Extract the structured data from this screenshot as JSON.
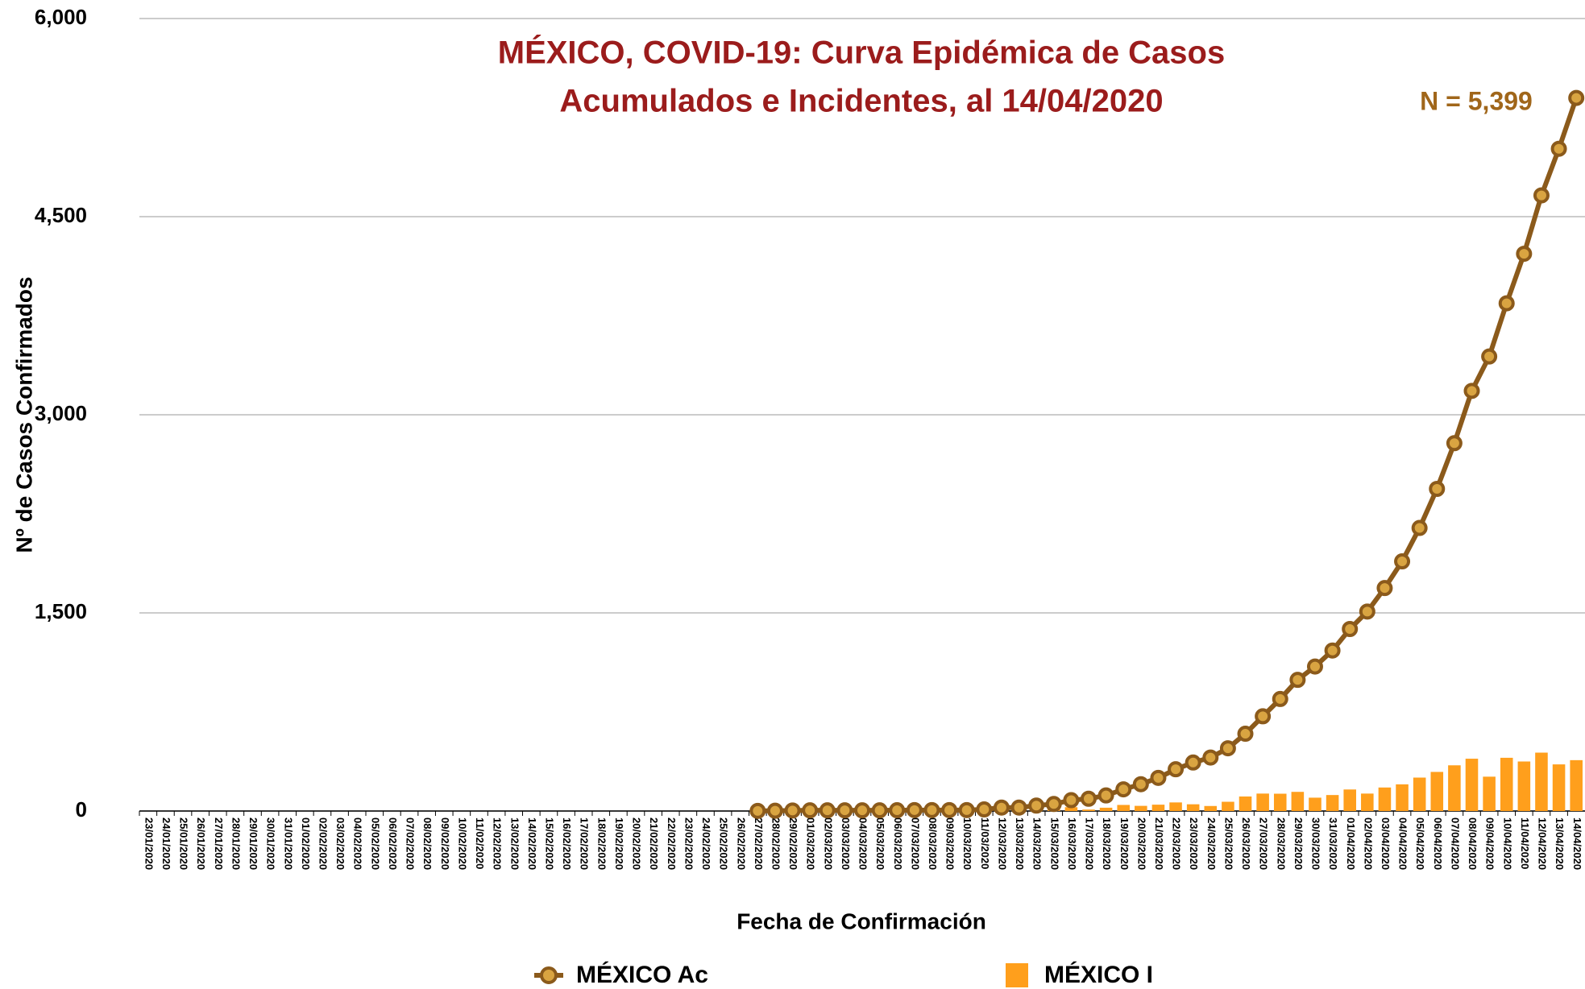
{
  "chart_data": {
    "type": "line-bar",
    "title": [
      "MÉXICO, COVID-19: Curva Epidémica de Casos",
      "Acumulados e Incidentes, al 14/04/2020"
    ],
    "annotation": "N = 5,399",
    "y_label": "Nº de Casos Confirmados",
    "x_label": "Fecha de Confirmación",
    "categories": [
      "23/01/2020",
      "24/01/2020",
      "25/01/2020",
      "26/01/2020",
      "27/01/2020",
      "28/01/2020",
      "29/01/2020",
      "30/01/2020",
      "31/01/2020",
      "01/02/2020",
      "02/02/2020",
      "03/02/2020",
      "04/02/2020",
      "05/02/2020",
      "06/02/2020",
      "07/02/2020",
      "08/02/2020",
      "09/02/2020",
      "10/02/2020",
      "11/02/2020",
      "12/02/2020",
      "13/02/2020",
      "14/02/2020",
      "15/02/2020",
      "16/02/2020",
      "17/02/2020",
      "18/02/2020",
      "19/02/2020",
      "20/02/2020",
      "21/02/2020",
      "22/02/2020",
      "23/02/2020",
      "24/02/2020",
      "25/02/2020",
      "26/02/2020",
      "27/02/2020",
      "28/02/2020",
      "29/02/2020",
      "01/03/2020",
      "02/03/2020",
      "03/03/2020",
      "04/03/2020",
      "05/03/2020",
      "06/03/2020",
      "07/03/2020",
      "08/03/2020",
      "09/03/2020",
      "10/03/2020",
      "11/03/2020",
      "12/03/2020",
      "13/03/2020",
      "14/03/2020",
      "15/03/2020",
      "16/03/2020",
      "17/03/2020",
      "18/03/2020",
      "19/03/2020",
      "20/03/2020",
      "21/03/2020",
      "22/03/2020",
      "23/03/2020",
      "24/03/2020",
      "25/03/2020",
      "26/03/2020",
      "27/03/2020",
      "28/03/2020",
      "29/03/2020",
      "30/03/2020",
      "31/03/2020",
      "01/04/2020",
      "02/04/2020",
      "03/04/2020",
      "04/04/2020",
      "05/04/2020",
      "06/04/2020",
      "07/04/2020",
      "08/04/2020",
      "09/04/2020",
      "10/04/2020",
      "11/04/2020",
      "12/04/2020",
      "13/04/2020",
      "14/04/2020"
    ],
    "series": [
      {
        "name": "MÉXICO I",
        "kind": "bar",
        "color": "#ff9f1c",
        "values": [
          null,
          null,
          null,
          null,
          null,
          null,
          null,
          null,
          null,
          null,
          null,
          null,
          null,
          null,
          null,
          null,
          null,
          null,
          null,
          null,
          null,
          null,
          null,
          null,
          null,
          null,
          null,
          null,
          null,
          null,
          null,
          null,
          null,
          null,
          null,
          1,
          1,
          2,
          1,
          0,
          0,
          0,
          0,
          1,
          1,
          0,
          0,
          0,
          5,
          14,
          0,
          15,
          12,
          29,
          11,
          25,
          46,
          39,
          48,
          65,
          51,
          38,
          70,
          110,
          132,
          131,
          145,
          101,
          121,
          163,
          132,
          178,
          202,
          253,
          296,
          346,
          396,
          260,
          403,
          375,
          442,
          353,
          385
        ]
      },
      {
        "name": "MÉXICO Ac",
        "kind": "line",
        "color": "#8b5a1b",
        "marker_color": "#d9a441",
        "values": [
          null,
          null,
          null,
          null,
          null,
          null,
          null,
          null,
          null,
          null,
          null,
          null,
          null,
          null,
          null,
          null,
          null,
          null,
          null,
          null,
          null,
          null,
          null,
          null,
          null,
          null,
          null,
          null,
          null,
          null,
          null,
          null,
          null,
          null,
          null,
          1,
          2,
          4,
          5,
          5,
          5,
          5,
          5,
          6,
          7,
          7,
          7,
          7,
          12,
          26,
          26,
          41,
          53,
          82,
          93,
          118,
          164,
          203,
          251,
          316,
          367,
          405,
          475,
          585,
          717,
          848,
          993,
          1094,
          1215,
          1378,
          1510,
          1688,
          1890,
          2143,
          2439,
          2785,
          3181,
          3441,
          3844,
          4219,
          4661,
          5014,
          5399
        ]
      }
    ],
    "ylim": [
      0,
      6000
    ],
    "yticks": [
      0,
      {
        "value": 1500,
        "label": "1,500"
      },
      {
        "value": 3000,
        "label": "3,000"
      },
      {
        "value": 4500,
        "label": "4,500"
      },
      {
        "value": 6000,
        "label": "6,000"
      }
    ],
    "grid": true
  }
}
